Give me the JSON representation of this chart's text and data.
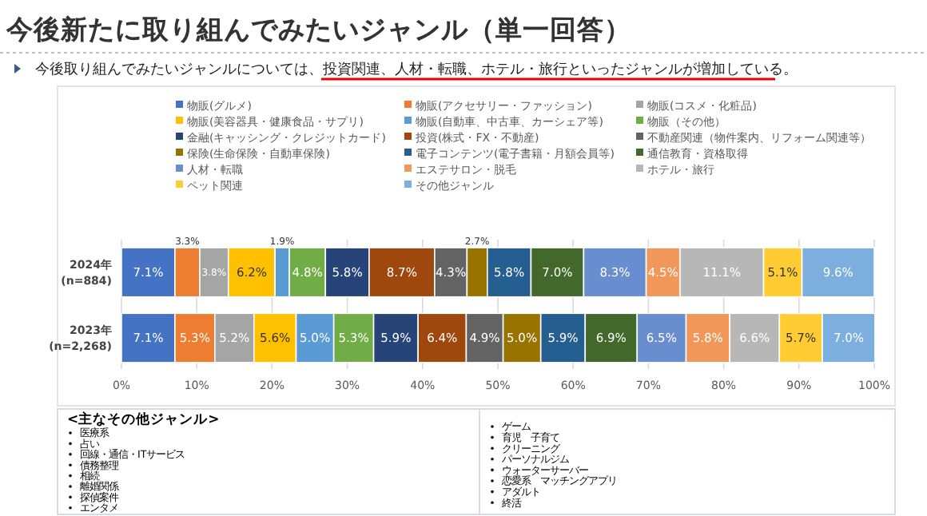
{
  "chart_data": {
    "type": "bar",
    "orientation": "horizontal",
    "stacked": true,
    "title": "今後新たに取り組んでみたいジャンル（単一回答）",
    "subtitle": "今後取り組んでみたいジャンルについては、投資関連、人材・転職、ホテル・旅行といったジャンルが増加している。",
    "categories": [
      "2024年\n(n=884)",
      "2023年\n(n=2,268)"
    ],
    "series": [
      {
        "name": "物販(グルメ)",
        "color": "#4472c4",
        "values": [
          7.1,
          7.1
        ],
        "value_labels": [
          "7.1%",
          "7.1%"
        ]
      },
      {
        "name": "物販(アクセサリー・ファッション)",
        "color": "#ed7d31",
        "values": [
          3.3,
          5.3
        ],
        "value_labels": [
          "3.3%",
          "5.3%"
        ]
      },
      {
        "name": "物販(コスメ・化粧品)",
        "color": "#a5a5a5",
        "values": [
          3.8,
          5.2
        ],
        "value_labels": [
          "3.8%",
          "5.2%"
        ]
      },
      {
        "name": "物販(美容器具・健康食品・サプリ)",
        "color": "#ffc000",
        "values": [
          6.2,
          5.6
        ],
        "value_labels": [
          "6.2%",
          "5.6%"
        ]
      },
      {
        "name": "物販(自動車、中古車、カーシェア等)",
        "color": "#5b9bd5",
        "values": [
          1.9,
          5.0
        ],
        "value_labels": [
          "1.9%",
          "5.0%"
        ]
      },
      {
        "name": "物販（その他）",
        "color": "#70ad47",
        "values": [
          4.8,
          5.3
        ],
        "value_labels": [
          "4.8%",
          "5.3%"
        ]
      },
      {
        "name": "金融(キャッシング・クレジットカード)",
        "color": "#264478",
        "values": [
          5.8,
          5.9
        ],
        "value_labels": [
          "5.8%",
          "5.9%"
        ]
      },
      {
        "name": "投資(株式・FX・不動産)",
        "color": "#9e480e",
        "values": [
          8.7,
          6.4
        ],
        "value_labels": [
          "8.7%",
          "6.4%"
        ]
      },
      {
        "name": "不動産関連（物件案内、リフォーム関連等）",
        "color": "#636363",
        "values": [
          4.3,
          4.9
        ],
        "value_labels": [
          "4.3%",
          "4.9%"
        ]
      },
      {
        "name": "保険(生命保険・自動車保険)",
        "color": "#997300",
        "values": [
          2.7,
          5.0
        ],
        "value_labels": [
          "2.7%",
          "5.0%"
        ]
      },
      {
        "name": "電子コンテンツ(電子書籍・月額会員等)",
        "color": "#255e91",
        "values": [
          5.8,
          5.9
        ],
        "value_labels": [
          "5.8%",
          "5.9%"
        ]
      },
      {
        "name": "通信教育・資格取得",
        "color": "#43682b",
        "values": [
          7.0,
          6.9
        ],
        "value_labels": [
          "7.0%",
          "6.9%"
        ]
      },
      {
        "name": "人材・転職",
        "color": "#698ed0",
        "values": [
          8.3,
          6.5
        ],
        "value_labels": [
          "8.3%",
          "6.5%"
        ]
      },
      {
        "name": "エステサロン・脱毛",
        "color": "#f1975a",
        "values": [
          4.5,
          5.8
        ],
        "value_labels": [
          "4.5%",
          "5.8%"
        ]
      },
      {
        "name": "ホテル・旅行",
        "color": "#b7b7b7",
        "values": [
          11.1,
          6.6
        ],
        "value_labels": [
          "11.1%",
          "6.6%"
        ]
      },
      {
        "name": "ペット関連",
        "color": "#ffcd33",
        "values": [
          5.1,
          5.7
        ],
        "value_labels": [
          "5.1%",
          "5.7%"
        ]
      },
      {
        "name": "その他ジャンル",
        "color": "#7cafdd",
        "values": [
          9.6,
          7.0
        ],
        "value_labels": [
          "9.6%",
          "7.0%"
        ]
      }
    ],
    "xlim": [
      0,
      100
    ],
    "xticks": [
      {
        "value": 0,
        "label": "0%"
      },
      {
        "value": 10,
        "label": "10%"
      },
      {
        "value": 20,
        "label": "20%"
      },
      {
        "value": 30,
        "label": "30%"
      },
      {
        "value": 40,
        "label": "40%"
      },
      {
        "value": 50,
        "label": "50%"
      },
      {
        "value": 60,
        "label": "60%"
      },
      {
        "value": 70,
        "label": "70%"
      },
      {
        "value": 80,
        "label": "80%"
      },
      {
        "value": 90,
        "label": "90%"
      },
      {
        "value": 100,
        "label": "100%"
      }
    ],
    "grid": "x",
    "legend": "top",
    "annotations": [
      "<主なその他ジャンル>",
      "医療系",
      "占い",
      "回線・通信・ITサービス",
      "債務整理",
      "相続",
      "離婚関係",
      "探偵案件",
      "エンタメ",
      "ゲーム",
      "育児　子育て",
      "クリーニング",
      "パーソナルジム",
      "ウォーターサーバー",
      "恋愛系　マッチングアプリ",
      "アダルト",
      "終活"
    ]
  }
}
